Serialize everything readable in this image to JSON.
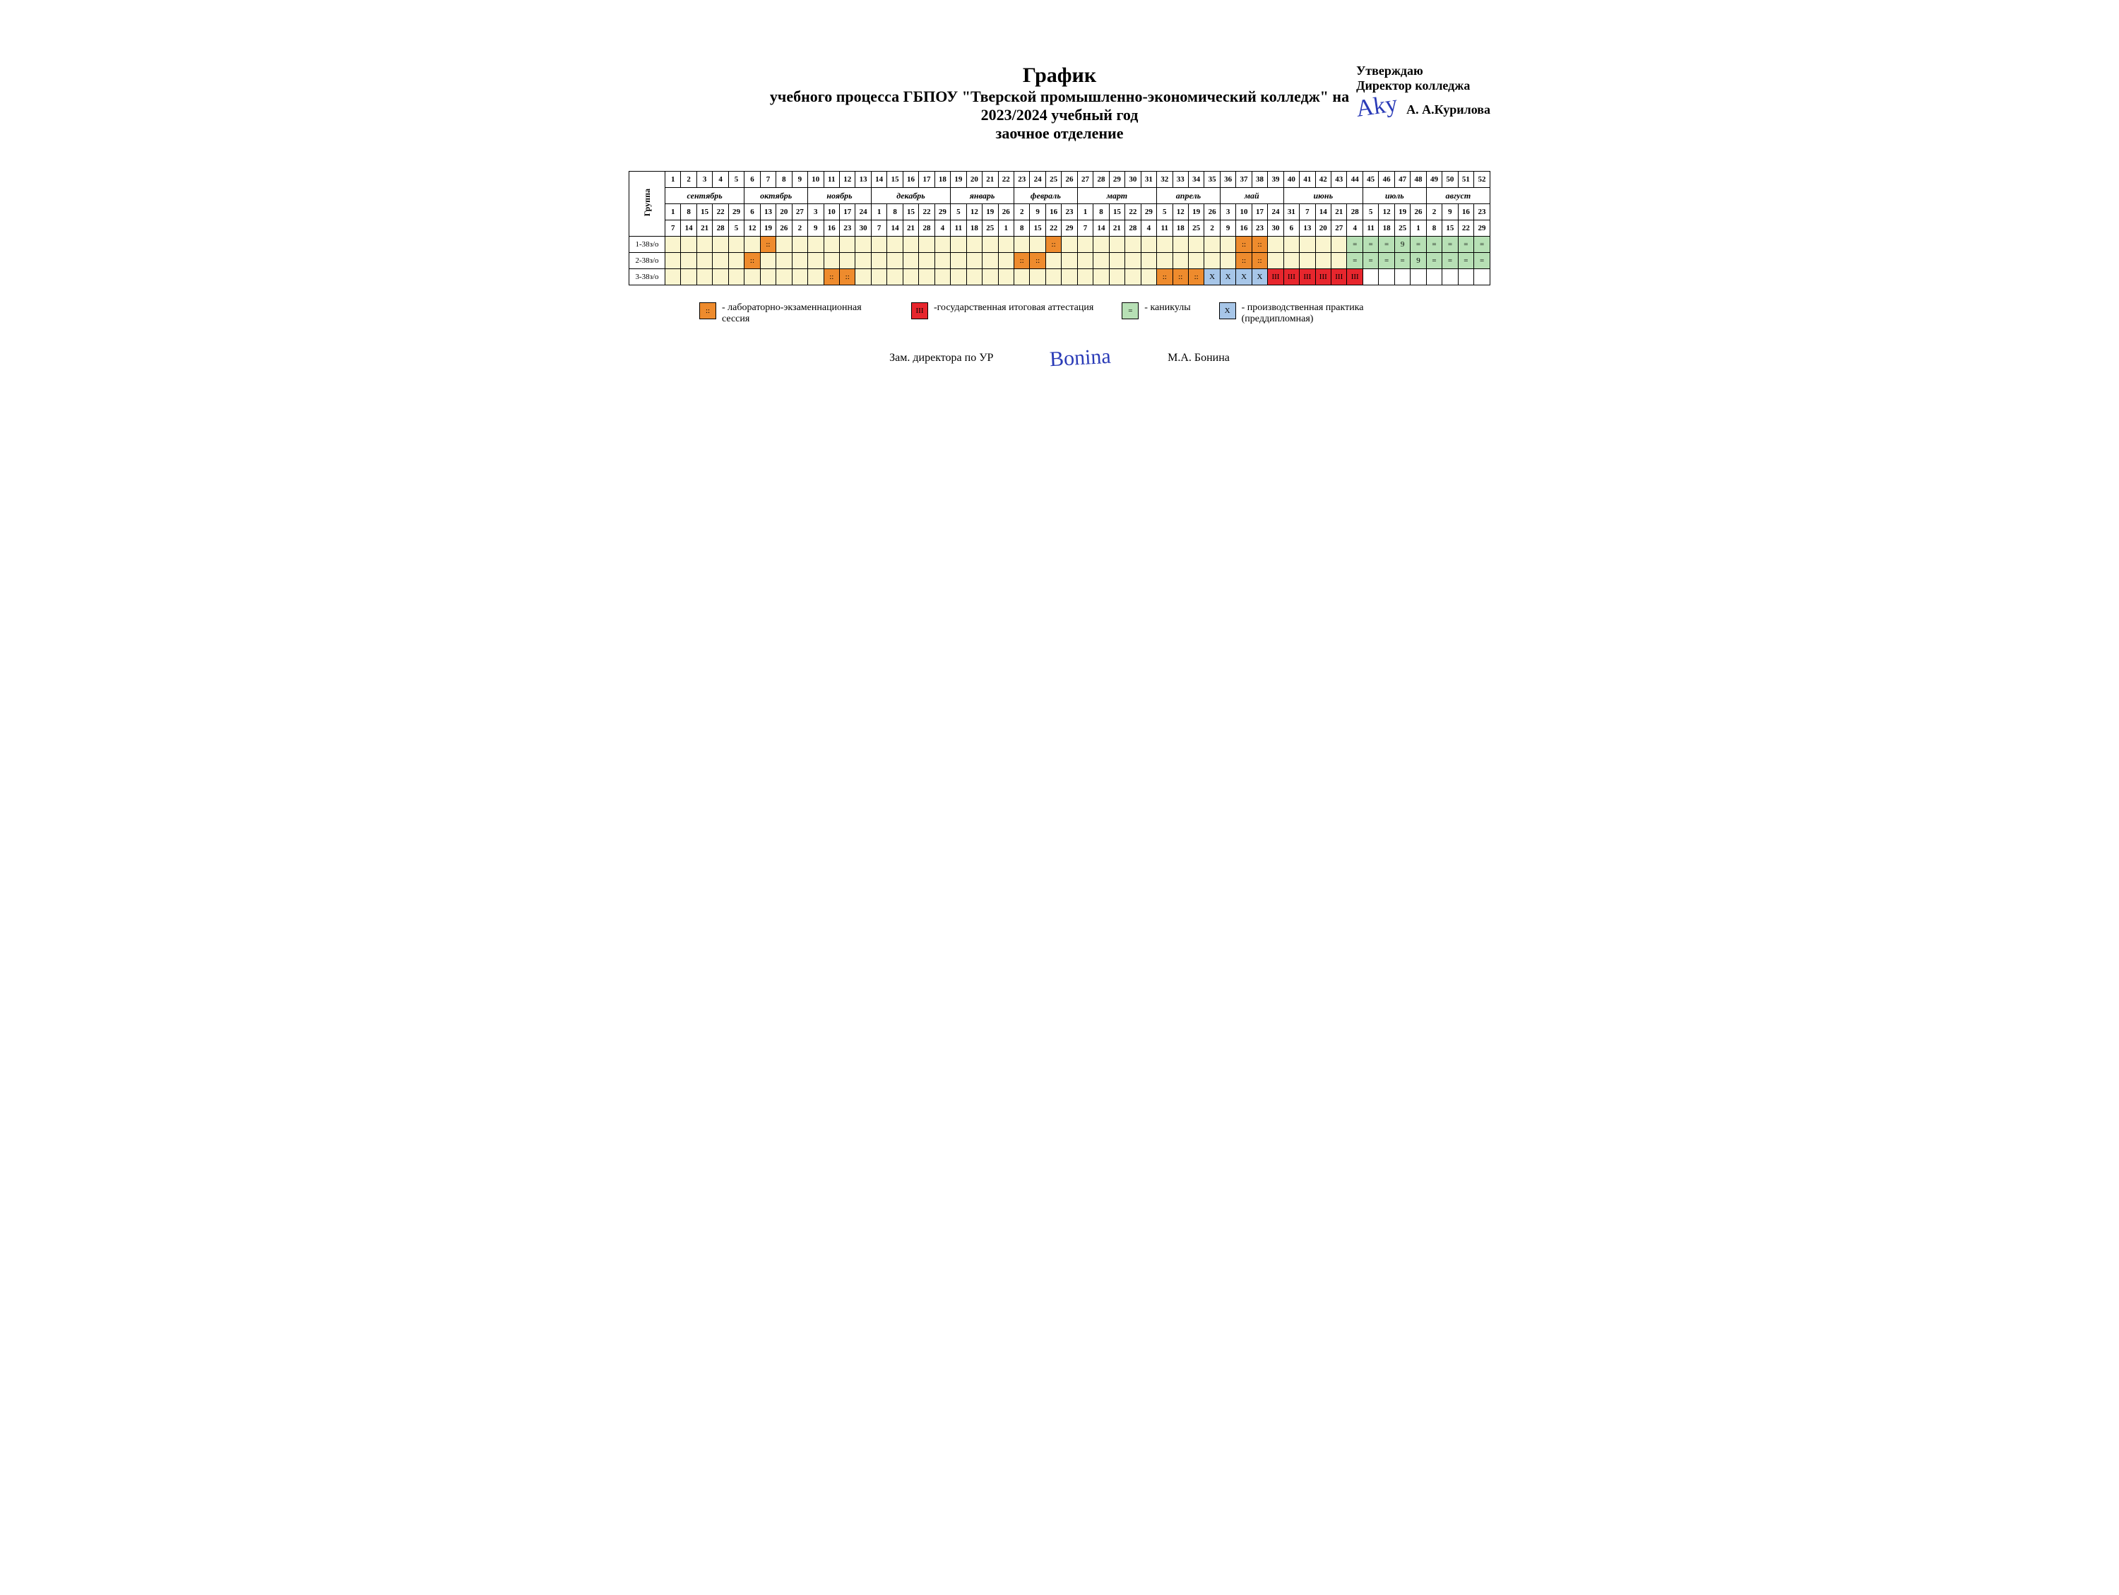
{
  "approve": {
    "line1": "Утверждаю",
    "line2": "Директор колледжа",
    "name": "А. А.Курилова",
    "signature": "Aky"
  },
  "title": {
    "main": "График",
    "sub1": "учебного процесса ГБПОУ \"Тверской промышленно-экономический колледж\" на",
    "sub2": "2023/2024 учебный год",
    "sub3": "заочное отделение"
  },
  "group_header": "Группа",
  "weeks": [
    1,
    2,
    3,
    4,
    5,
    6,
    7,
    8,
    9,
    10,
    11,
    12,
    13,
    14,
    15,
    16,
    17,
    18,
    19,
    20,
    21,
    22,
    23,
    24,
    25,
    26,
    27,
    28,
    29,
    30,
    31,
    32,
    33,
    34,
    35,
    36,
    37,
    38,
    39,
    40,
    41,
    42,
    43,
    44,
    45,
    46,
    47,
    48,
    49,
    50,
    51,
    52
  ],
  "months": [
    {
      "label": "сентябрь",
      "span": 5
    },
    {
      "label": "октябрь",
      "span": 4
    },
    {
      "label": "ноябрь",
      "span": 4
    },
    {
      "label": "декабрь",
      "span": 5
    },
    {
      "label": "январь",
      "span": 4
    },
    {
      "label": "февраль",
      "span": 4
    },
    {
      "label": "март",
      "span": 5
    },
    {
      "label": "апрель",
      "span": 4
    },
    {
      "label": "май",
      "span": 4
    },
    {
      "label": "июнь",
      "span": 5
    },
    {
      "label": "июль",
      "span": 4
    },
    {
      "label": "август",
      "span": 4
    }
  ],
  "dates_top": [
    1,
    8,
    15,
    22,
    29,
    6,
    13,
    20,
    27,
    3,
    10,
    17,
    24,
    1,
    8,
    15,
    22,
    29,
    5,
    12,
    19,
    26,
    2,
    9,
    16,
    23,
    1,
    8,
    15,
    22,
    29,
    5,
    12,
    19,
    26,
    3,
    10,
    17,
    24,
    31,
    7,
    14,
    21,
    28,
    5,
    12,
    19,
    26,
    2,
    9,
    16,
    23
  ],
  "dates_bottom": [
    7,
    14,
    21,
    28,
    5,
    12,
    19,
    26,
    2,
    9,
    16,
    23,
    30,
    7,
    14,
    21,
    28,
    4,
    11,
    18,
    25,
    1,
    8,
    15,
    22,
    29,
    7,
    14,
    21,
    28,
    4,
    11,
    18,
    25,
    2,
    9,
    16,
    23,
    30,
    6,
    13,
    20,
    27,
    4,
    11,
    18,
    25,
    1,
    8,
    15,
    22,
    29
  ],
  "colors": {
    "default": "#faf5cf",
    "session": "#ee8b2d",
    "exam": "#e7262d",
    "holiday": "#b7e0b5",
    "practice": "#a7c6e8",
    "none": "#ffffff"
  },
  "symbols": {
    "session": "::",
    "exam": "III",
    "holiday": "=",
    "practice": "X"
  },
  "rows": [
    {
      "group": "1-38з/о",
      "cells": [
        {
          "c": "default"
        },
        {
          "c": "default"
        },
        {
          "c": "default"
        },
        {
          "c": "default"
        },
        {
          "c": "default"
        },
        {
          "c": "default"
        },
        {
          "c": "session",
          "t": "::"
        },
        {
          "c": "default"
        },
        {
          "c": "default"
        },
        {
          "c": "default"
        },
        {
          "c": "default"
        },
        {
          "c": "default"
        },
        {
          "c": "default"
        },
        {
          "c": "default"
        },
        {
          "c": "default"
        },
        {
          "c": "default"
        },
        {
          "c": "default"
        },
        {
          "c": "default"
        },
        {
          "c": "default"
        },
        {
          "c": "default"
        },
        {
          "c": "default"
        },
        {
          "c": "default"
        },
        {
          "c": "default"
        },
        {
          "c": "default"
        },
        {
          "c": "session",
          "t": "::"
        },
        {
          "c": "default"
        },
        {
          "c": "default"
        },
        {
          "c": "default"
        },
        {
          "c": "default"
        },
        {
          "c": "default"
        },
        {
          "c": "default"
        },
        {
          "c": "default"
        },
        {
          "c": "default"
        },
        {
          "c": "default"
        },
        {
          "c": "default"
        },
        {
          "c": "default"
        },
        {
          "c": "session",
          "t": "::"
        },
        {
          "c": "session",
          "t": "::"
        },
        {
          "c": "default"
        },
        {
          "c": "default"
        },
        {
          "c": "default"
        },
        {
          "c": "default"
        },
        {
          "c": "default"
        },
        {
          "c": "holiday",
          "t": "="
        },
        {
          "c": "holiday",
          "t": "="
        },
        {
          "c": "holiday",
          "t": "="
        },
        {
          "c": "holiday",
          "t": "9"
        },
        {
          "c": "holiday",
          "t": "="
        },
        {
          "c": "holiday",
          "t": "="
        },
        {
          "c": "holiday",
          "t": "="
        },
        {
          "c": "holiday",
          "t": "="
        },
        {
          "c": "holiday",
          "t": "="
        }
      ]
    },
    {
      "group": "2-38з/о",
      "cells": [
        {
          "c": "default"
        },
        {
          "c": "default"
        },
        {
          "c": "default"
        },
        {
          "c": "default"
        },
        {
          "c": "default"
        },
        {
          "c": "session",
          "t": "::"
        },
        {
          "c": "default"
        },
        {
          "c": "default"
        },
        {
          "c": "default"
        },
        {
          "c": "default"
        },
        {
          "c": "default"
        },
        {
          "c": "default"
        },
        {
          "c": "default"
        },
        {
          "c": "default"
        },
        {
          "c": "default"
        },
        {
          "c": "default"
        },
        {
          "c": "default"
        },
        {
          "c": "default"
        },
        {
          "c": "default"
        },
        {
          "c": "default"
        },
        {
          "c": "default"
        },
        {
          "c": "default"
        },
        {
          "c": "session",
          "t": "::"
        },
        {
          "c": "session",
          "t": "::"
        },
        {
          "c": "default"
        },
        {
          "c": "default"
        },
        {
          "c": "default"
        },
        {
          "c": "default"
        },
        {
          "c": "default"
        },
        {
          "c": "default"
        },
        {
          "c": "default"
        },
        {
          "c": "default"
        },
        {
          "c": "default"
        },
        {
          "c": "default"
        },
        {
          "c": "default"
        },
        {
          "c": "default"
        },
        {
          "c": "session",
          "t": "::"
        },
        {
          "c": "session",
          "t": "::"
        },
        {
          "c": "default"
        },
        {
          "c": "default"
        },
        {
          "c": "default"
        },
        {
          "c": "default"
        },
        {
          "c": "default"
        },
        {
          "c": "holiday",
          "t": "="
        },
        {
          "c": "holiday",
          "t": "="
        },
        {
          "c": "holiday",
          "t": "="
        },
        {
          "c": "holiday",
          "t": "="
        },
        {
          "c": "holiday",
          "t": "9"
        },
        {
          "c": "holiday",
          "t": "="
        },
        {
          "c": "holiday",
          "t": "="
        },
        {
          "c": "holiday",
          "t": "="
        },
        {
          "c": "holiday",
          "t": "="
        }
      ]
    },
    {
      "group": "3-38з/о",
      "cells": [
        {
          "c": "default"
        },
        {
          "c": "default"
        },
        {
          "c": "default"
        },
        {
          "c": "default"
        },
        {
          "c": "default"
        },
        {
          "c": "default"
        },
        {
          "c": "default"
        },
        {
          "c": "default"
        },
        {
          "c": "default"
        },
        {
          "c": "default"
        },
        {
          "c": "session",
          "t": "::"
        },
        {
          "c": "session",
          "t": "::"
        },
        {
          "c": "default"
        },
        {
          "c": "default"
        },
        {
          "c": "default"
        },
        {
          "c": "default"
        },
        {
          "c": "default"
        },
        {
          "c": "default"
        },
        {
          "c": "default"
        },
        {
          "c": "default"
        },
        {
          "c": "default"
        },
        {
          "c": "default"
        },
        {
          "c": "default"
        },
        {
          "c": "default"
        },
        {
          "c": "default"
        },
        {
          "c": "default"
        },
        {
          "c": "default"
        },
        {
          "c": "default"
        },
        {
          "c": "default"
        },
        {
          "c": "default"
        },
        {
          "c": "default"
        },
        {
          "c": "session",
          "t": "::"
        },
        {
          "c": "session",
          "t": "::"
        },
        {
          "c": "session",
          "t": "::"
        },
        {
          "c": "practice",
          "t": "X"
        },
        {
          "c": "practice",
          "t": "X"
        },
        {
          "c": "practice",
          "t": "X"
        },
        {
          "c": "practice",
          "t": "X"
        },
        {
          "c": "exam",
          "t": "III"
        },
        {
          "c": "exam",
          "t": "III"
        },
        {
          "c": "exam",
          "t": "III"
        },
        {
          "c": "exam",
          "t": "III"
        },
        {
          "c": "exam",
          "t": "III"
        },
        {
          "c": "exam",
          "t": "III"
        },
        {
          "c": "none"
        },
        {
          "c": "none"
        },
        {
          "c": "none"
        },
        {
          "c": "none"
        },
        {
          "c": "none"
        },
        {
          "c": "none"
        },
        {
          "c": "none"
        },
        {
          "c": "none"
        }
      ]
    }
  ],
  "legend": [
    {
      "key": "session",
      "text": "- лабораторно-экзаменнационная сессия"
    },
    {
      "key": "exam",
      "text": "-государственная итоговая аттестация"
    },
    {
      "key": "holiday",
      "text": "- каникулы"
    },
    {
      "key": "practice",
      "text": "- производственная практика (преддипломная)"
    }
  ],
  "footer": {
    "left": "Зам. директора по УР",
    "signature": "Bonina",
    "right": "М.А. Бонина"
  }
}
